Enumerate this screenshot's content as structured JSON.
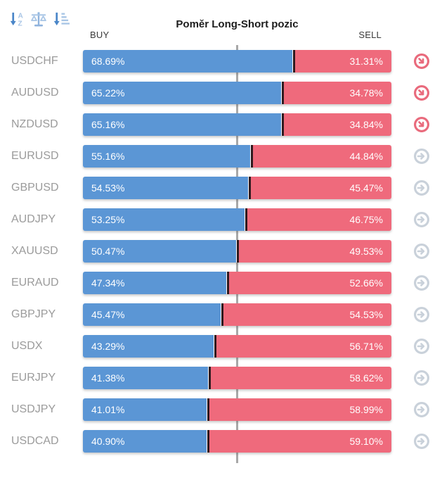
{
  "header": {
    "title": "Poměr Long-Short pozic",
    "buy_label": "BUY",
    "sell_label": "SELL",
    "toolbar": [
      {
        "icon": "sort-alpha-icon"
      },
      {
        "icon": "balance-scale-icon"
      },
      {
        "icon": "sort-amount-icon"
      }
    ]
  },
  "colors": {
    "buy_bar": "#5b96d5",
    "sell_bar": "#ef6a7c",
    "segment_divider": "#2f191e",
    "center_line": "#a8a8a8",
    "pair_label": "#9b9b9b",
    "signal_down": "#e96a7c",
    "signal_neutral": "#c9d1da",
    "toolbar_primary": "#4a86c8",
    "toolbar_secondary": "#a9c6e6"
  },
  "chart_data": {
    "type": "bar",
    "orientation": "horizontal",
    "stacked": true,
    "title": "Poměr Long-Short pozic",
    "series": [
      "BUY",
      "SELL"
    ],
    "xlim": [
      0,
      100
    ],
    "center_line_value": 50,
    "grid": false,
    "legend_position": "top (BUY left, SELL right)",
    "rows": [
      {
        "pair": "USDCHF",
        "buy": 68.69,
        "sell": 31.31,
        "buy_label": "68.69%",
        "sell_label": "31.31%",
        "signal": "down"
      },
      {
        "pair": "AUDUSD",
        "buy": 65.22,
        "sell": 34.78,
        "buy_label": "65.22%",
        "sell_label": "34.78%",
        "signal": "down"
      },
      {
        "pair": "NZDUSD",
        "buy": 65.16,
        "sell": 34.84,
        "buy_label": "65.16%",
        "sell_label": "34.84%",
        "signal": "down"
      },
      {
        "pair": "EURUSD",
        "buy": 55.16,
        "sell": 44.84,
        "buy_label": "55.16%",
        "sell_label": "44.84%",
        "signal": "neutral"
      },
      {
        "pair": "GBPUSD",
        "buy": 54.53,
        "sell": 45.47,
        "buy_label": "54.53%",
        "sell_label": "45.47%",
        "signal": "neutral"
      },
      {
        "pair": "AUDJPY",
        "buy": 53.25,
        "sell": 46.75,
        "buy_label": "53.25%",
        "sell_label": "46.75%",
        "signal": "neutral"
      },
      {
        "pair": "XAUUSD",
        "buy": 50.47,
        "sell": 49.53,
        "buy_label": "50.47%",
        "sell_label": "49.53%",
        "signal": "neutral"
      },
      {
        "pair": "EURAUD",
        "buy": 47.34,
        "sell": 52.66,
        "buy_label": "47.34%",
        "sell_label": "52.66%",
        "signal": "neutral"
      },
      {
        "pair": "GBPJPY",
        "buy": 45.47,
        "sell": 54.53,
        "buy_label": "45.47%",
        "sell_label": "54.53%",
        "signal": "neutral"
      },
      {
        "pair": "USDX",
        "buy": 43.29,
        "sell": 56.71,
        "buy_label": "43.29%",
        "sell_label": "56.71%",
        "signal": "neutral"
      },
      {
        "pair": "EURJPY",
        "buy": 41.38,
        "sell": 58.62,
        "buy_label": "41.38%",
        "sell_label": "58.62%",
        "signal": "neutral"
      },
      {
        "pair": "USDJPY",
        "buy": 41.01,
        "sell": 58.99,
        "buy_label": "41.01%",
        "sell_label": "58.99%",
        "signal": "neutral"
      },
      {
        "pair": "USDCAD",
        "buy": 40.9,
        "sell": 59.1,
        "buy_label": "40.90%",
        "sell_label": "59.10%",
        "signal": "neutral"
      }
    ]
  }
}
